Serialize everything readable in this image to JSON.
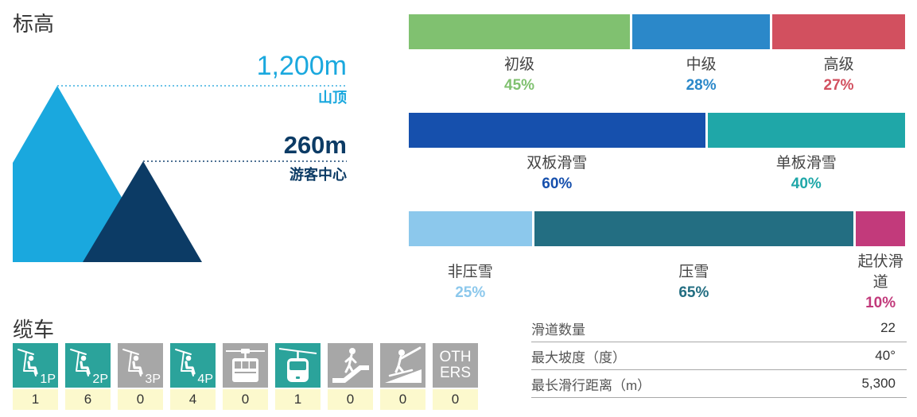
{
  "elevation": {
    "title": "标高",
    "summit": {
      "value": "1,200m",
      "label": "山顶",
      "color": "#1aa8de"
    },
    "base": {
      "value": "260m",
      "label": "游客中心",
      "color": "#0c3b65"
    }
  },
  "difficulty": [
    {
      "label": "初级",
      "percent": "45%",
      "color": "#80c170"
    },
    {
      "label": "中级",
      "percent": "28%",
      "color": "#2b88c9"
    },
    {
      "label": "高级",
      "percent": "27%",
      "color": "#d2505f"
    }
  ],
  "ski_type": [
    {
      "label": "双板滑雪",
      "percent": "60%",
      "color": "#1650ad"
    },
    {
      "label": "单板滑雪",
      "percent": "40%",
      "color": "#1fa7a8"
    }
  ],
  "grooming": [
    {
      "label": "非压雪",
      "percent": "25%",
      "color": "#8cc8ec"
    },
    {
      "label": "压雪",
      "percent": "65%",
      "color": "#236e82"
    },
    {
      "label": "起伏滑道",
      "percent": "10%",
      "color": "#c23a7b"
    }
  ],
  "stats": [
    {
      "label": "滑道数量",
      "value": "22"
    },
    {
      "label": "最大坡度（度）",
      "value": "40°"
    },
    {
      "label": "最长滑行距离（m）",
      "value": "5,300"
    }
  ],
  "lifts": {
    "title": "缆车",
    "items": [
      {
        "icon": "chairlift-1p-icon",
        "label": "1P",
        "count": "1",
        "color": "#2ba39b"
      },
      {
        "icon": "chairlift-2p-icon",
        "label": "2P",
        "count": "6",
        "color": "#2ba39b"
      },
      {
        "icon": "chairlift-3p-icon",
        "label": "3P",
        "count": "0",
        "color": "#a7a7a7"
      },
      {
        "icon": "chairlift-4p-icon",
        "label": "4P",
        "count": "4",
        "color": "#2ba39b"
      },
      {
        "icon": "cable-car-icon",
        "count": "0",
        "color": "#a7a7a7"
      },
      {
        "icon": "gondola-icon",
        "count": "1",
        "color": "#2ba39b"
      },
      {
        "icon": "magic-carpet-icon",
        "count": "0",
        "color": "#a7a7a7"
      },
      {
        "icon": "surface-lift-icon",
        "count": "0",
        "color": "#a7a7a7"
      },
      {
        "icon": "others-icon",
        "label": "OTHERS",
        "count": "0",
        "color": "#a7a7a7"
      }
    ]
  }
}
